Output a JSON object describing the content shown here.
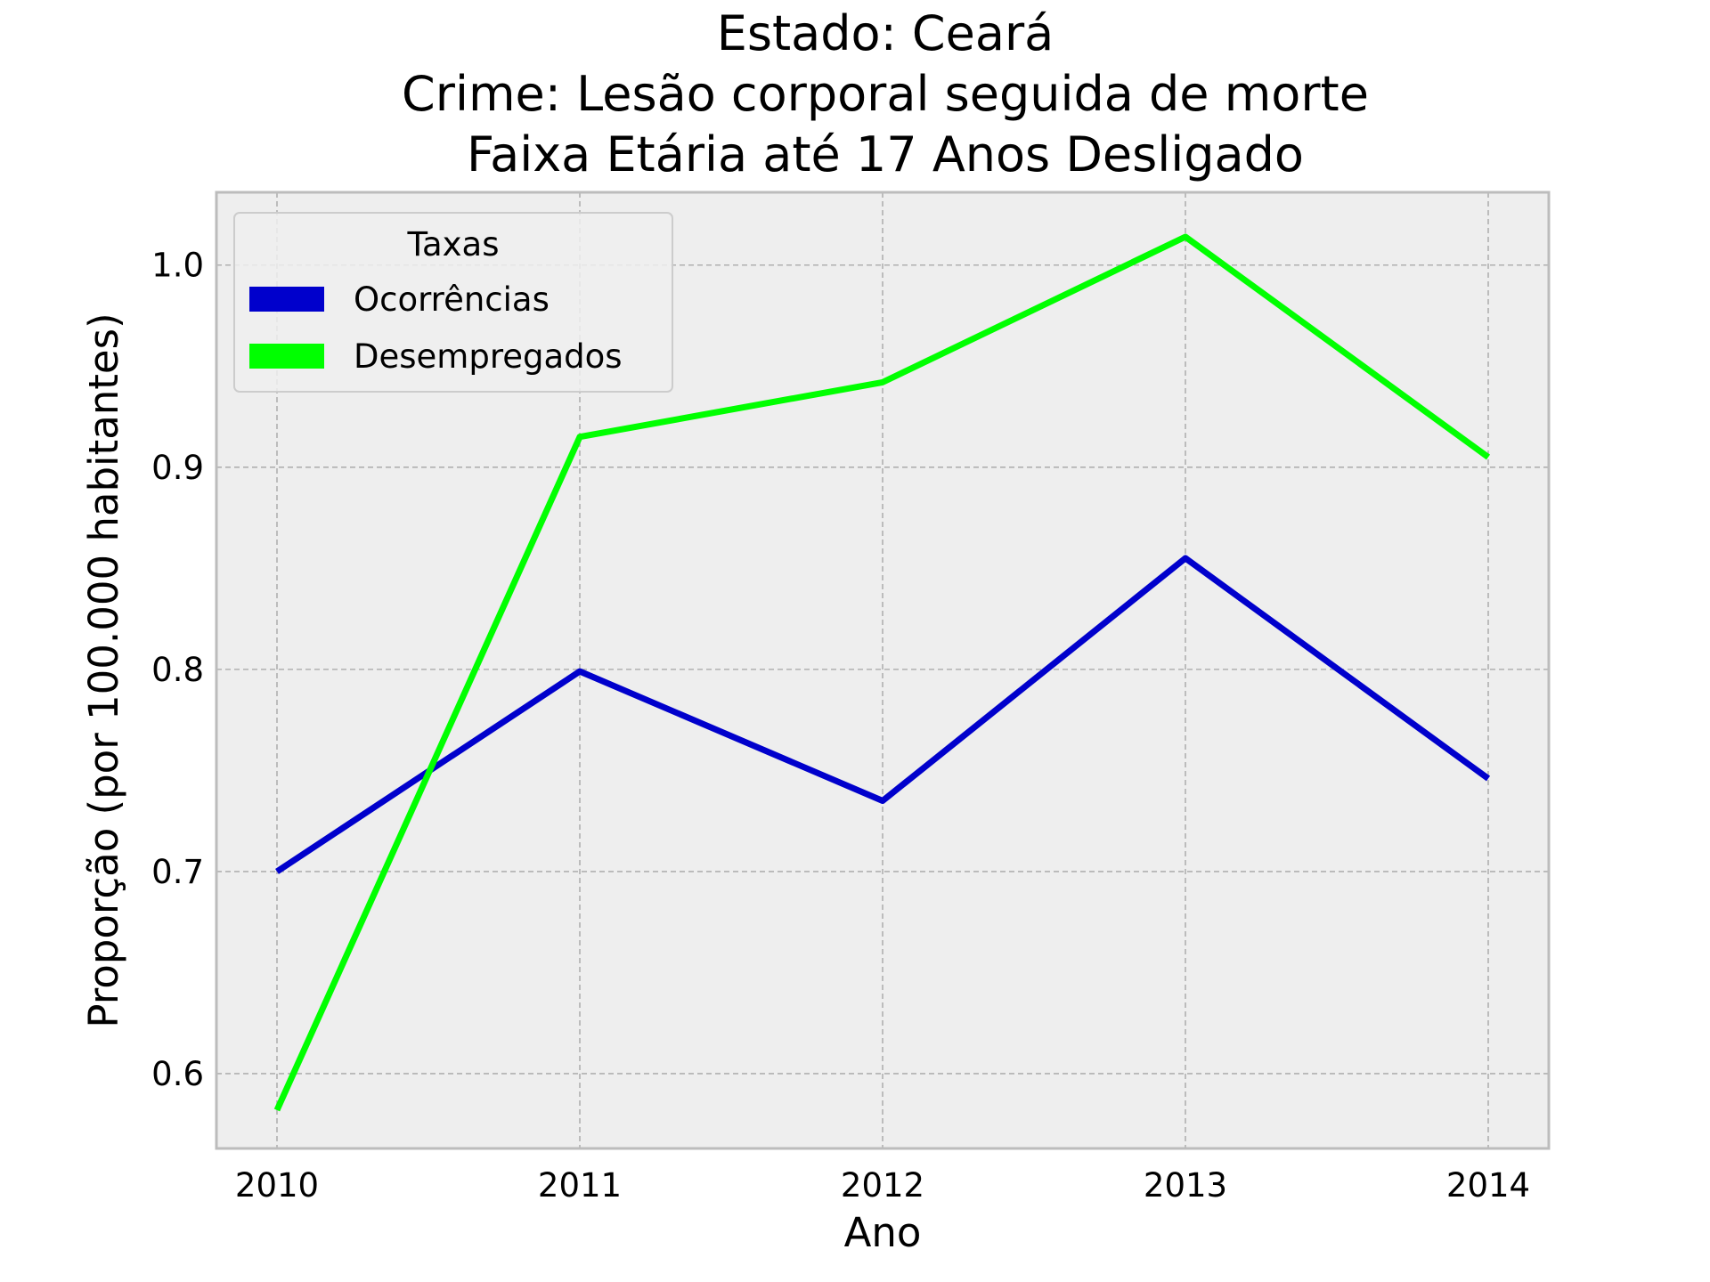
{
  "chart_data": {
    "type": "line",
    "title_lines": [
      "Estado: Ceará",
      "Crime: Lesão corporal seguida de morte",
      "Faixa Etária até 17 Anos   Desligado"
    ],
    "xlabel": "Ano",
    "ylabel": "Proporção (por 100.000 habitantes)",
    "x": [
      2010,
      2011,
      2012,
      2013,
      2014
    ],
    "xticks": [
      "2010",
      "2011",
      "2012",
      "2013",
      "2014"
    ],
    "yticks": [
      0.6,
      0.7,
      0.8,
      0.9,
      1.0
    ],
    "ytick_labels": [
      "0.6",
      "0.7",
      "0.8",
      "0.9",
      "1.0"
    ],
    "xlim": [
      2009.8,
      2014.2
    ],
    "ylim": [
      0.563,
      1.036
    ],
    "grid": true,
    "legend": {
      "title": "Taxas",
      "placement": "upper-left"
    },
    "series": [
      {
        "name": "Ocorrências",
        "color": "#0000cc",
        "values": [
          0.7,
          0.799,
          0.735,
          0.855,
          0.746
        ]
      },
      {
        "name": "Desempregados",
        "color": "#00ff00",
        "values": [
          0.582,
          0.915,
          0.942,
          1.014,
          0.905
        ]
      }
    ],
    "colors": {
      "plot_background": "#eeeeee",
      "grid": "#b0b0b0",
      "frame": "#bcbcbc"
    }
  }
}
